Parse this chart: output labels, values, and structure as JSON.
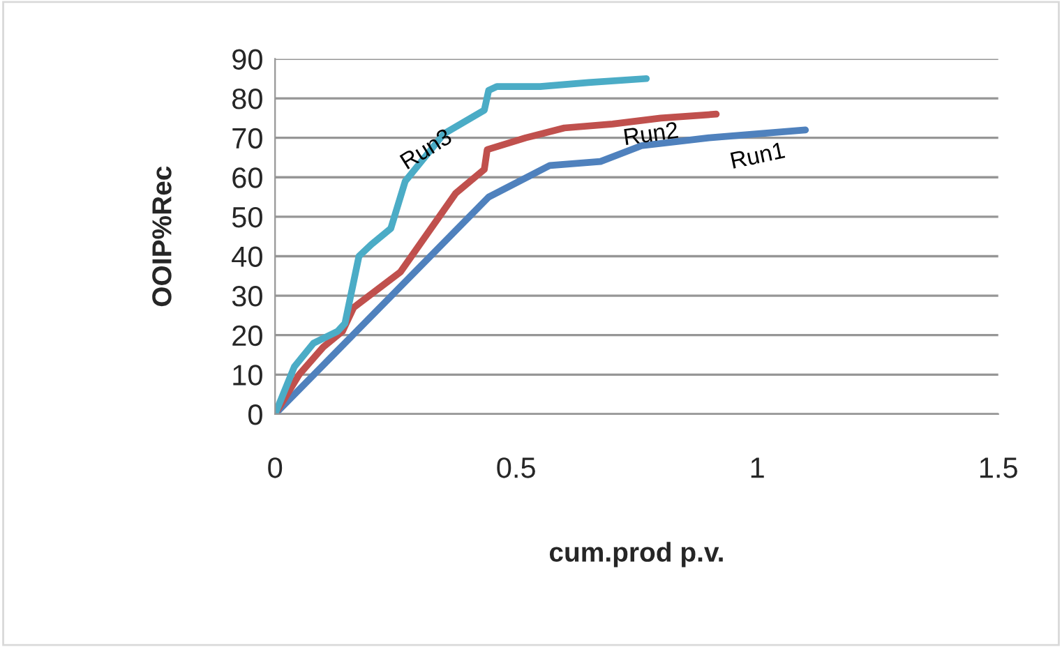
{
  "chart_data": {
    "type": "line",
    "xlabel": "cum.prod p.v.",
    "ylabel": "OOIP%Rec",
    "xlim": [
      0,
      1.5
    ],
    "xticks": [
      0,
      0.5,
      1,
      1.5
    ],
    "ylim": [
      0,
      90
    ],
    "yticks": [
      0,
      10,
      20,
      30,
      40,
      50,
      60,
      70,
      80,
      90
    ],
    "grid": "y",
    "legend": false,
    "marker": "none",
    "line_style": "solid",
    "series": [
      {
        "name": "Run1",
        "color": "#4f81bd",
        "x": [
          0,
          0.443,
          0.57,
          0.675,
          0.76,
          0.9,
          1.1
        ],
        "values": [
          0,
          55,
          63,
          64,
          68,
          70,
          72
        ]
      },
      {
        "name": "Run2",
        "color": "#c0504d",
        "x": [
          0,
          0.05,
          0.1,
          0.14,
          0.163,
          0.26,
          0.375,
          0.434,
          0.44,
          0.52,
          0.6,
          0.7,
          0.8,
          0.915
        ],
        "values": [
          0,
          10,
          17,
          21,
          27,
          36,
          56,
          62,
          67,
          70,
          72.5,
          73.5,
          75,
          76
        ]
      },
      {
        "name": "Run3",
        "color": "#4bacc6",
        "x": [
          0,
          0.04,
          0.08,
          0.13,
          0.145,
          0.174,
          0.2,
          0.24,
          0.27,
          0.35,
          0.434,
          0.443,
          0.46,
          0.55,
          0.65,
          0.77
        ],
        "values": [
          0,
          12,
          18,
          21,
          23,
          40,
          43,
          47,
          59,
          71,
          77,
          82,
          83,
          83,
          84,
          85
        ]
      }
    ]
  }
}
